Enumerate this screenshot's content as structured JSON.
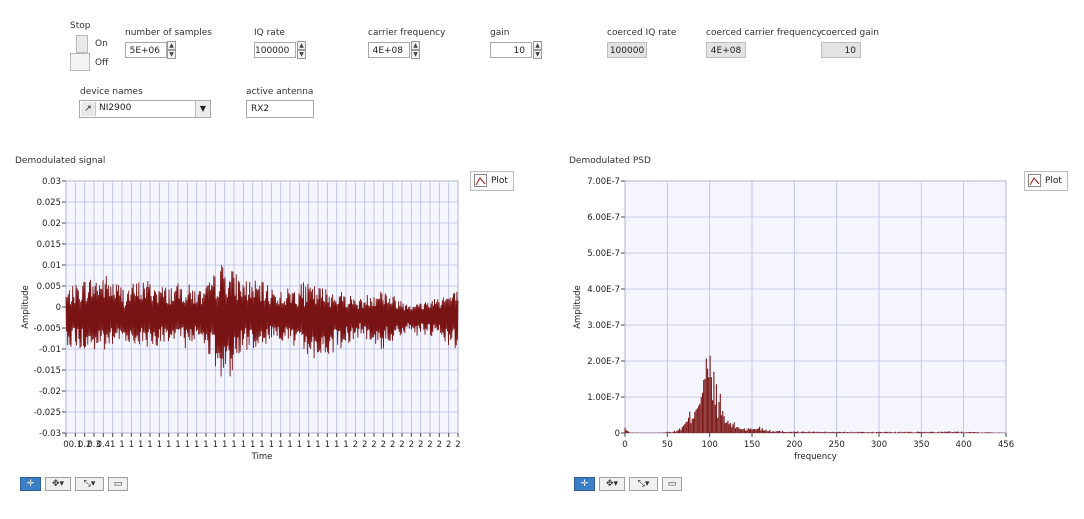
{
  "controls": {
    "stop": {
      "label": "Stop",
      "on_label": "On",
      "off_label": "Off"
    },
    "num_samples": {
      "label": "number of samples",
      "value": "5E+06"
    },
    "iq_rate": {
      "label": "IQ rate",
      "value": "100000"
    },
    "carrier_freq": {
      "label": "carrier frequency",
      "value": "4E+08"
    },
    "gain": {
      "label": "gain",
      "value": "10"
    },
    "coerced_iq": {
      "label": "coerced IQ rate",
      "value": "100000"
    },
    "coerced_carrier": {
      "label": "coerced carrier frequency",
      "value": "4E+08"
    },
    "coerced_gain": {
      "label": "coerced gain",
      "value": "10"
    },
    "device_names": {
      "label": "device names",
      "value": "NI2900"
    },
    "active_antenna": {
      "label": "active antenna",
      "value": "RX2"
    }
  },
  "graphs": {
    "left": {
      "title": "Demodulated signal",
      "plot_label": "Plot"
    },
    "right": {
      "title": "Demodulated PSD",
      "plot_label": "Plot"
    }
  },
  "colors": {
    "trace": "#7a1414",
    "grid": "#b8bde6",
    "plot_bg": "#f4f5fd"
  },
  "icons": [
    "cursor-icon",
    "pan-icon",
    "zoom-icon",
    "graph-options-icon",
    "browse-arrow-icon"
  ],
  "chart_data": [
    {
      "type": "line",
      "title": "Demodulated signal",
      "xlabel": "Time",
      "ylabel": "Amplitude",
      "ylim": [
        -0.03,
        0.03
      ],
      "xlim": [
        0,
        2
      ],
      "y_ticks": [
        "0.03",
        "0.025",
        "0.02",
        "0.015",
        "0.01",
        "0.005",
        "0",
        "-0.005",
        "-0.01",
        "-0.015",
        "-0.02",
        "-0.025",
        "-0.03"
      ],
      "x_ticks": [
        "0",
        "0.1",
        "0.2",
        "0.3",
        "0.4",
        "1",
        "1",
        "1",
        "1",
        "1",
        "1",
        "1",
        "1",
        "1",
        "1",
        "1",
        "1",
        "1",
        "1",
        "1",
        "1",
        "1",
        "1",
        "1",
        "1",
        "1",
        "1",
        "1",
        "1",
        "1",
        "1",
        "2",
        "2",
        "2",
        "2",
        "2",
        "2",
        "2",
        "2",
        "2",
        "2",
        "2",
        "2"
      ],
      "grid": true,
      "series": [
        {
          "x": [
            0,
            0.1,
            0.2,
            0.3,
            0.4,
            0.5,
            0.6,
            0.7,
            0.8,
            0.9,
            1.0,
            1.1,
            1.2,
            1.3,
            1.4,
            1.5,
            1.6,
            1.7,
            1.8,
            1.9,
            2.0
          ],
          "y": [
            -0.002,
            -0.002,
            -0.002,
            -0.003,
            -0.002,
            -0.002,
            -0.002,
            -0.002,
            -0.002,
            -0.002,
            -0.002,
            -0.002,
            -0.003,
            -0.003,
            -0.002,
            -0.002,
            -0.002,
            -0.002,
            -0.002,
            -0.002,
            -0.002
          ],
          "envelope_upper": [
            0.004,
            0.007,
            0.008,
            0.005,
            0.007,
            0.005,
            0.006,
            0.004,
            0.011,
            0.007,
            0.006,
            0.004,
            0.006,
            0.005,
            0.004,
            0.002,
            0.005,
            0.002,
            0.001,
            0.003,
            0.004
          ],
          "envelope_lower": [
            -0.009,
            -0.011,
            -0.011,
            -0.008,
            -0.01,
            -0.009,
            -0.01,
            -0.008,
            -0.02,
            -0.011,
            -0.009,
            -0.008,
            -0.011,
            -0.013,
            -0.01,
            -0.007,
            -0.011,
            -0.007,
            -0.007,
            -0.008,
            -0.011
          ]
        }
      ]
    },
    {
      "type": "bar",
      "title": "Demodulated PSD",
      "xlabel": "frequency",
      "ylabel": "Amplitude",
      "ylim": [
        0,
        7e-07
      ],
      "xlim": [
        0,
        456
      ],
      "y_ticks": [
        "7.00E-7",
        "6.00E-7",
        "5.00E-7",
        "4.00E-7",
        "3.00E-7",
        "2.00E-7",
        "1.00E-7",
        "0"
      ],
      "x_ticks": [
        "0",
        "50",
        "100",
        "150",
        "200",
        "250",
        "300",
        "350",
        "400",
        "456"
      ],
      "grid": true,
      "series": [
        {
          "x": [
            0,
            5,
            10,
            40,
            60,
            70,
            80,
            85,
            90,
            95,
            100,
            105,
            110,
            115,
            120,
            130,
            140,
            150,
            160,
            170,
            180,
            200,
            250,
            300,
            350,
            400,
            456
          ],
          "y": [
            1.5e-08,
            2e-09,
            1e-09,
            1e-09,
            5e-09,
            2e-08,
            6e-08,
            1e-07,
            1.4e-07,
            1.8e-07,
            2e-07,
            1.6e-07,
            1.2e-07,
            8e-08,
            4e-08,
            2.5e-08,
            1.5e-08,
            1.2e-08,
            1.8e-08,
            1e-08,
            6e-09,
            4e-09,
            3e-09,
            3e-09,
            3e-09,
            4e-09,
            1e-09
          ]
        }
      ]
    }
  ]
}
